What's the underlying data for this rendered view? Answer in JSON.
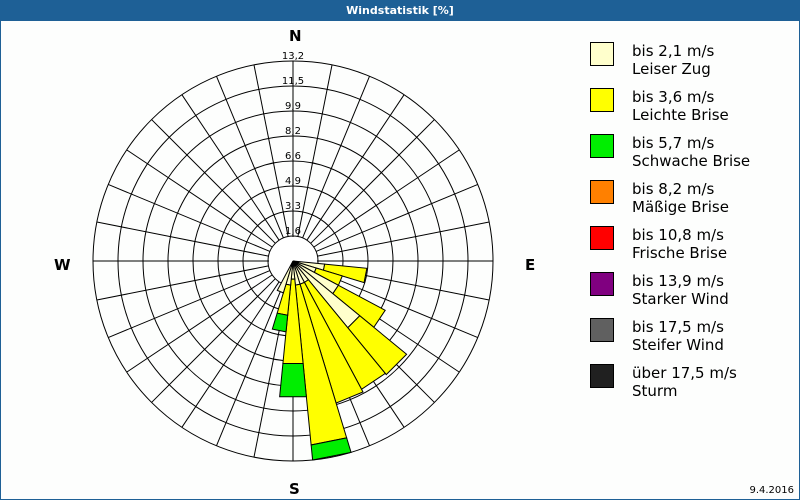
{
  "window": {
    "title": "Windstatistik [%]"
  },
  "compass": {
    "n": "N",
    "e": "E",
    "s": "S",
    "w": "W"
  },
  "footer": {
    "date": "9.4.2016"
  },
  "legend": [
    {
      "range": "bis 2,1 m/s",
      "name": "Leiser Zug",
      "color": "#ffffcc"
    },
    {
      "range": "bis 3,6 m/s",
      "name": "Leichte Brise",
      "color": "#ffff00"
    },
    {
      "range": "bis 5,7 m/s",
      "name": "Schwache Brise",
      "color": "#00ee00"
    },
    {
      "range": "bis 8,2 m/s",
      "name": "Mäßige Brise",
      "color": "#ff8000"
    },
    {
      "range": "bis 10,8 m/s",
      "name": "Frische Brise",
      "color": "#ff0000"
    },
    {
      "range": "bis 13,9 m/s",
      "name": "Starker Wind",
      "color": "#800080"
    },
    {
      "range": "bis 17,5 m/s",
      "name": "Steifer Wind",
      "color": "#606060"
    },
    {
      "range": "über 17,5 m/s",
      "name": "Sturm",
      "color": "#202020"
    }
  ],
  "chart_data": {
    "type": "wind_rose",
    "title": "Windstatistik [%]",
    "radial_ticks": [
      "1,6",
      "3,3",
      "4,9",
      "6,6",
      "8,2",
      "9,9",
      "11,5",
      "13,2"
    ],
    "radial_max": 13.2,
    "sector_width_deg": 11.25,
    "series_names": [
      "bis 2,1 m/s",
      "bis 3,6 m/s",
      "bis 5,7 m/s"
    ],
    "sectors": [
      {
        "dir_deg": 101.25,
        "cum": [
          2.1,
          4.9,
          4.9
        ]
      },
      {
        "dir_deg": 112.5,
        "cum": [
          1.6,
          3.4,
          3.4
        ]
      },
      {
        "dir_deg": 123.75,
        "cum": [
          3.4,
          6.9,
          6.9
        ]
      },
      {
        "dir_deg": 135,
        "cum": [
          5.7,
          9.7,
          9.7
        ]
      },
      {
        "dir_deg": 146.25,
        "cum": [
          1.6,
          9.6,
          9.6
        ]
      },
      {
        "dir_deg": 157.5,
        "cum": [
          1.6,
          9.8,
          9.8
        ]
      },
      {
        "dir_deg": 168.75,
        "cum": [
          1.6,
          12.2,
          13.2
        ]
      },
      {
        "dir_deg": 180,
        "cum": [
          1.2,
          6.8,
          9.0
        ]
      },
      {
        "dir_deg": 191.25,
        "cum": [
          1.6,
          3.6,
          4.7
        ]
      },
      {
        "dir_deg": 202.5,
        "cum": [
          2.2,
          2.2,
          2.2
        ]
      }
    ]
  }
}
